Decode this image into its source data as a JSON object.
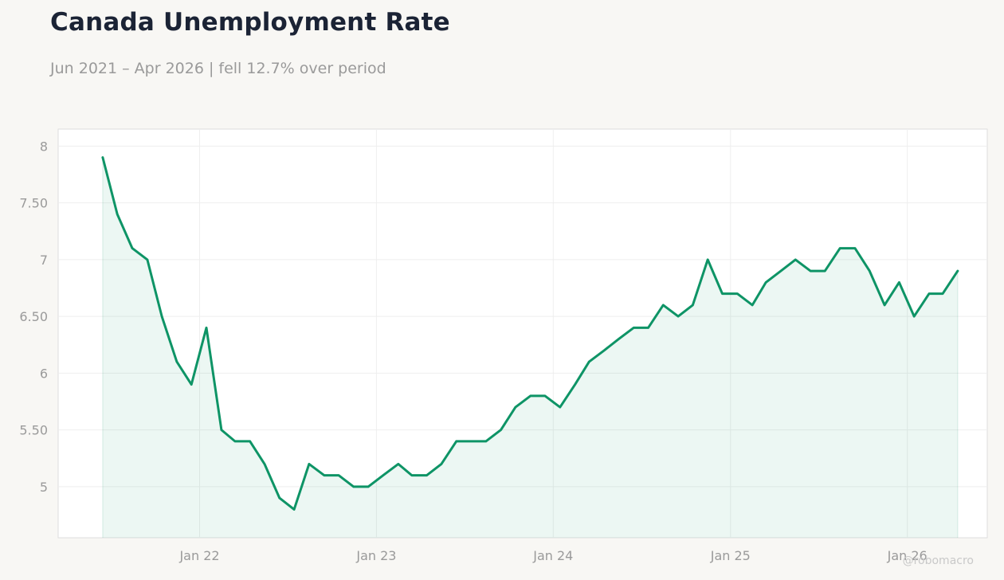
{
  "header": {
    "title": "Canada Unemployment Rate",
    "subtitle": "Jun 2021 – Apr 2026 | fell 12.7% over period"
  },
  "watermark": "@robomacro",
  "colors": {
    "line": "#0e9466",
    "fill": "#0e9466",
    "background": "#f8f7f4",
    "plot_background": "#ffffff",
    "grid": "#eeeeee",
    "tick_text": "#9a9a9a"
  },
  "chart_data": {
    "type": "area",
    "title": "Canada Unemployment Rate",
    "subtitle": "Jun 2021 – Apr 2026 | fell 12.7% over period",
    "xlabel": "",
    "ylabel": "",
    "ylim": [
      4.55,
      8.15
    ],
    "xlim": [
      "2021-03-15",
      "2026-06-15"
    ],
    "grid": true,
    "y_ticks": [
      {
        "value": 5,
        "label": "5"
      },
      {
        "value": 5.5,
        "label": "5.50"
      },
      {
        "value": 6,
        "label": "6"
      },
      {
        "value": 6.5,
        "label": "6.50"
      },
      {
        "value": 7,
        "label": "7"
      },
      {
        "value": 7.5,
        "label": "7.50"
      },
      {
        "value": 8,
        "label": "8"
      }
    ],
    "x_ticks": [
      {
        "date": "2022-01-01",
        "label": "Jan 22"
      },
      {
        "date": "2023-01-01",
        "label": "Jan 23"
      },
      {
        "date": "2024-01-01",
        "label": "Jan 24"
      },
      {
        "date": "2025-01-01",
        "label": "Jan 25"
      },
      {
        "date": "2026-01-01",
        "label": "Jan 26"
      }
    ],
    "series": [
      {
        "dates": [
          "2021-06",
          "2021-07",
          "2021-08",
          "2021-09",
          "2021-10",
          "2021-11",
          "2021-12",
          "2022-01",
          "2022-02",
          "2022-03",
          "2022-04",
          "2022-05",
          "2022-06",
          "2022-07",
          "2022-08",
          "2022-09",
          "2022-10",
          "2022-11",
          "2022-12",
          "2023-01",
          "2023-02",
          "2023-03",
          "2023-04",
          "2023-05",
          "2023-06",
          "2023-07",
          "2023-08",
          "2023-09",
          "2023-10",
          "2023-11",
          "2023-12",
          "2024-01",
          "2024-02",
          "2024-03",
          "2024-04",
          "2024-05",
          "2024-06",
          "2024-07",
          "2024-08",
          "2024-09",
          "2024-10",
          "2024-11",
          "2024-12",
          "2025-01",
          "2025-02",
          "2025-03",
          "2025-04",
          "2025-05",
          "2025-06",
          "2025-07",
          "2025-08",
          "2025-09",
          "2025-10",
          "2025-11",
          "2025-12",
          "2026-01",
          "2026-02",
          "2026-03",
          "2026-04"
        ],
        "values": [
          7.9,
          7.4,
          7.1,
          7.0,
          6.5,
          6.1,
          5.9,
          6.4,
          5.5,
          5.4,
          5.4,
          5.2,
          4.9,
          4.8,
          5.2,
          5.1,
          5.1,
          5.0,
          5.0,
          5.1,
          5.2,
          5.1,
          5.1,
          5.2,
          5.4,
          5.4,
          5.4,
          5.5,
          5.7,
          5.8,
          5.8,
          5.7,
          5.9,
          6.1,
          6.2,
          6.3,
          6.4,
          6.4,
          6.6,
          6.5,
          6.6,
          7.0,
          6.7,
          6.7,
          6.6,
          6.8,
          6.9,
          7.0,
          6.9,
          6.9,
          7.1,
          7.1,
          6.9,
          6.6,
          6.8,
          6.5,
          6.7,
          6.7,
          6.9
        ]
      }
    ]
  }
}
